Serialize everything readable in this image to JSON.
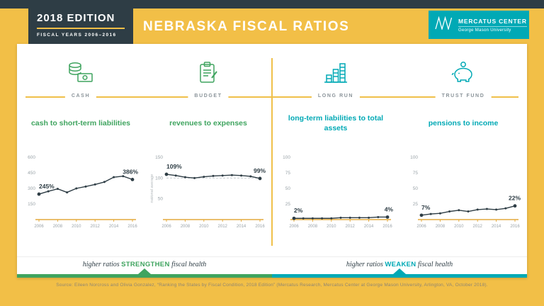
{
  "header": {
    "edition": "2018 EDITION",
    "fiscal_years": "FISCAL YEARS 2006–2016",
    "title": "NEBRASKA FISCAL RATIOS",
    "logo_line1": "MERCATUS CENTER",
    "logo_line2": "George Mason University"
  },
  "colors": {
    "navy": "#2e3d45",
    "gold": "#f2bf47",
    "green": "#3fa45f",
    "teal": "#00a9b5"
  },
  "panels": [
    {
      "category": "CASH",
      "title": "cash to short-term liabilities",
      "icon": "money-stack-icon",
      "accent": "#3fa45f"
    },
    {
      "category": "BUDGET",
      "title": "revenues to expenses",
      "icon": "budget-clipboard-icon",
      "accent": "#3fa45f"
    },
    {
      "category": "LONG RUN",
      "title": "long-term liabilities to total assets",
      "icon": "bar-buildings-icon",
      "accent": "#00a9b5"
    },
    {
      "category": "TRUST FUND",
      "title": "pensions to income",
      "icon": "piggy-bank-icon",
      "accent": "#00a9b5"
    }
  ],
  "footer_notes": [
    {
      "prefix": "higher ratios ",
      "word": "STRENGTHEN",
      "suffix": " fiscal health",
      "color": "#3fa45f"
    },
    {
      "prefix": "higher ratios ",
      "word": "WEAKEN",
      "suffix": " fiscal health",
      "color": "#00a9b5"
    }
  ],
  "source": "Source: Eileen Norcross and Olivia Gonzalez, “Ranking the States by Fiscal Condition, 2018 Edition” (Mercatus Research, Mercatus Center at George Mason University, Arlington, VA, October 2018).",
  "chart_data": [
    {
      "type": "line",
      "category": "CASH",
      "title": "cash to short-term liabilities",
      "x": [
        2006,
        2007,
        2008,
        2009,
        2010,
        2011,
        2012,
        2013,
        2014,
        2015,
        2016
      ],
      "values": [
        245,
        272,
        296,
        262,
        300,
        318,
        338,
        362,
        408,
        418,
        386
      ],
      "start_label": "245%",
      "end_label": "386%",
      "ylim": [
        0,
        600
      ],
      "yticks": [
        150,
        300,
        450,
        600
      ],
      "xticks": [
        2006,
        2008,
        2010,
        2012,
        2014,
        2016
      ],
      "grid": false,
      "line_color": "#2e3d45"
    },
    {
      "type": "line",
      "category": "BUDGET",
      "title": "revenues to expenses",
      "x": [
        2006,
        2007,
        2008,
        2009,
        2010,
        2011,
        2012,
        2013,
        2014,
        2015,
        2016
      ],
      "values": [
        109,
        106,
        102,
        100,
        103,
        105,
        106,
        107,
        106,
        104,
        99
      ],
      "start_label": "109%",
      "end_label": "99%",
      "ylim": [
        0,
        150
      ],
      "yticks": [
        50,
        100,
        150
      ],
      "xticks": [
        2006,
        2008,
        2010,
        2012,
        2014,
        2016
      ],
      "reference_line": {
        "value": 100,
        "label": "national average"
      },
      "grid": false,
      "line_color": "#2e3d45"
    },
    {
      "type": "line",
      "category": "LONG RUN",
      "title": "long-term liabilities to total assets",
      "x": [
        2006,
        2007,
        2008,
        2009,
        2010,
        2011,
        2012,
        2013,
        2014,
        2015,
        2016
      ],
      "values": [
        2,
        2,
        2,
        2,
        2,
        3,
        3,
        3,
        3,
        4,
        4
      ],
      "start_label": "2%",
      "end_label": "4%",
      "ylim": [
        0,
        100
      ],
      "yticks": [
        25,
        50,
        75,
        100
      ],
      "xticks": [
        2006,
        2008,
        2010,
        2012,
        2014,
        2016
      ],
      "grid": false,
      "line_color": "#2e3d45"
    },
    {
      "type": "line",
      "category": "TRUST FUND",
      "title": "pensions to income",
      "x": [
        2006,
        2007,
        2008,
        2009,
        2010,
        2011,
        2012,
        2013,
        2014,
        2015,
        2016
      ],
      "values": [
        7,
        9,
        10,
        13,
        15,
        13,
        16,
        17,
        16,
        18,
        22
      ],
      "start_label": "7%",
      "end_label": "22%",
      "ylim": [
        0,
        100
      ],
      "yticks": [
        25,
        50,
        75,
        100
      ],
      "xticks": [
        2006,
        2008,
        2010,
        2012,
        2014,
        2016
      ],
      "grid": false,
      "line_color": "#2e3d45"
    }
  ]
}
